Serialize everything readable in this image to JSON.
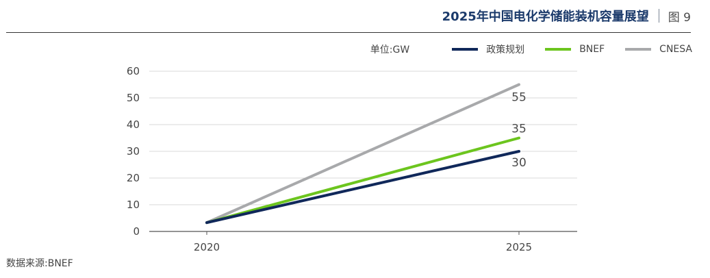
{
  "header": {
    "title": "2025年中国电化学储能装机容量展望",
    "figure_label": "图 9"
  },
  "legend": {
    "unit_label": "单位:GW"
  },
  "source": "数据来源:BNEF",
  "colors": {
    "政策规划": "#10285a",
    "BNEF": "#6cc51e",
    "CNESA": "#a8a9ab",
    "grid": "#d9d9d9",
    "axis": "#555555"
  },
  "chart_data": {
    "type": "line",
    "title": "2025年中国电化学储能装机容量展望",
    "x": [
      "2020",
      "2025"
    ],
    "ylabel": "单位:GW",
    "ylim": [
      0,
      60
    ],
    "yticks": [
      0,
      10,
      20,
      30,
      40,
      50,
      60
    ],
    "grid": true,
    "legend_position": "top-right",
    "series": [
      {
        "name": "政策规划",
        "values": [
          3.3,
          30
        ],
        "end_label": "30"
      },
      {
        "name": "BNEF",
        "values": [
          3.3,
          35
        ],
        "end_label": "35"
      },
      {
        "name": "CNESA",
        "values": [
          3.3,
          55
        ],
        "end_label": "55"
      }
    ]
  }
}
